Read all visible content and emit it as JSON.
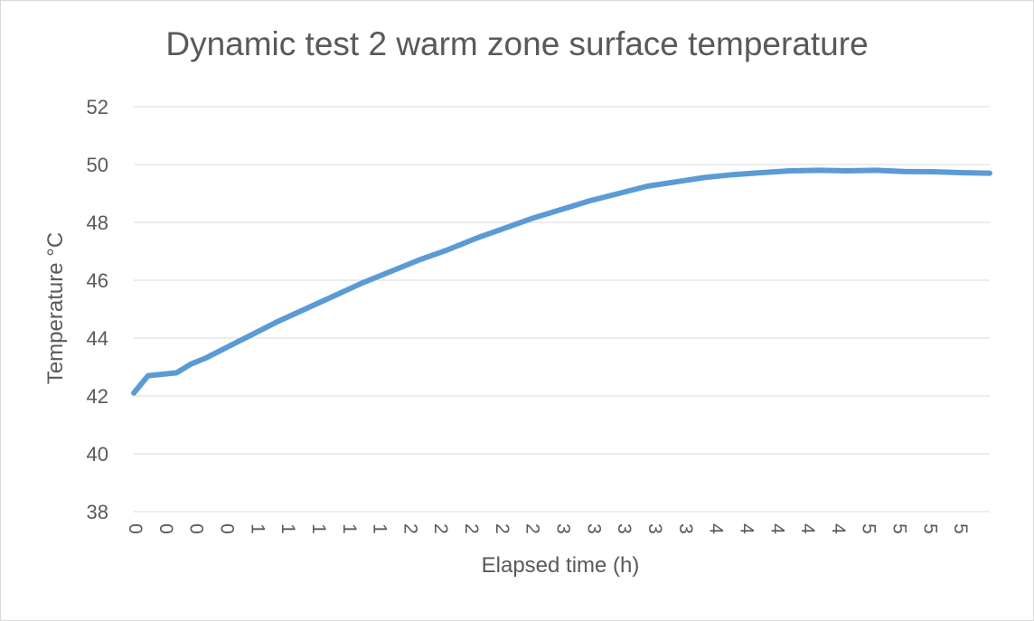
{
  "chart_data": {
    "type": "line",
    "title": "Dynamic test 2 warm zone surface temperature",
    "xlabel": "Elapsed time (h)",
    "ylabel": "Temperature °C",
    "ylim": [
      38,
      52
    ],
    "yticks": [
      38,
      40,
      42,
      44,
      46,
      48,
      50,
      52
    ],
    "xtick_labels": [
      "0",
      "0",
      "0",
      "0",
      "1",
      "1",
      "1",
      "1",
      "1",
      "2",
      "2",
      "2",
      "2",
      "2",
      "3",
      "3",
      "3",
      "3",
      "3",
      "4",
      "4",
      "4",
      "4",
      "4",
      "5",
      "5",
      "5",
      "5"
    ],
    "grid": true,
    "legend": "none",
    "series": [
      {
        "color": "#5b9bd5",
        "x": [
          0,
          0.1,
          0.2,
          0.3,
          0.4,
          0.5,
          0.6,
          0.7,
          0.8,
          0.9,
          1.0,
          1.2,
          1.4,
          1.6,
          1.8,
          2.0,
          2.2,
          2.4,
          2.6,
          2.8,
          3.0,
          3.2,
          3.4,
          3.6,
          3.8,
          4.0,
          4.2,
          4.4,
          4.6,
          4.8,
          5.0,
          5.2,
          5.4,
          5.6,
          5.8,
          6.0
        ],
        "y": [
          42.1,
          42.7,
          42.75,
          42.8,
          43.1,
          43.3,
          43.55,
          43.8,
          44.05,
          44.3,
          44.55,
          45.0,
          45.45,
          45.9,
          46.3,
          46.7,
          47.05,
          47.45,
          47.8,
          48.15,
          48.45,
          48.75,
          49.0,
          49.25,
          49.4,
          49.55,
          49.65,
          49.72,
          49.78,
          49.8,
          49.78,
          49.8,
          49.76,
          49.75,
          49.72,
          49.7
        ]
      }
    ]
  }
}
